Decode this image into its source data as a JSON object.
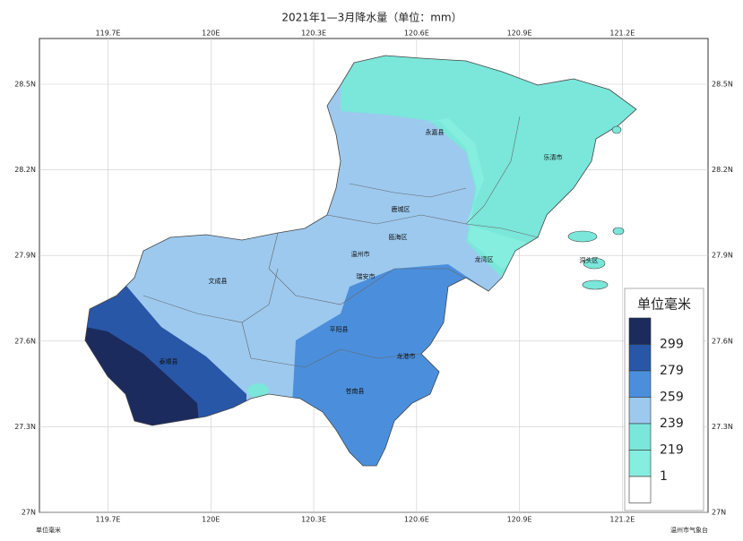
{
  "title": "2021年1—3月降水量（单位：mm）",
  "map": {
    "xlim": [
      119.5,
      121.45
    ],
    "ylim": [
      27,
      28.66
    ],
    "xticks": [
      {
        "value": 119.7,
        "label": "119.7E"
      },
      {
        "value": 120,
        "label": "120E"
      },
      {
        "value": 120.3,
        "label": "120.3E"
      },
      {
        "value": 120.6,
        "label": "120.6E"
      },
      {
        "value": 120.9,
        "label": "120.9E"
      },
      {
        "value": 121.2,
        "label": "121.2E"
      }
    ],
    "yticks": [
      {
        "value": 27,
        "label": "27N"
      },
      {
        "value": 27.3,
        "label": "27.3N"
      },
      {
        "value": 27.6,
        "label": "27.6N"
      },
      {
        "value": 27.9,
        "label": "27.9N"
      },
      {
        "value": 28.2,
        "label": "28.2N"
      },
      {
        "value": 28.5,
        "label": "28.5N"
      }
    ],
    "districts": [
      "永嘉县",
      "乐清市",
      "鹿城区",
      "瓯海区",
      "温州市",
      "龙湾区",
      "文成县",
      "瑞安市",
      "平阳县",
      "泰顺县",
      "龙港市",
      "苍南县",
      "洞头区"
    ]
  },
  "legend": {
    "title": "单位毫米",
    "levels": [
      299,
      279,
      259,
      239,
      219,
      1
    ],
    "colors": [
      "#1c2b5e",
      "#2857a8",
      "#4b8fdc",
      "#9dc9ef",
      "#7be6da",
      "#86eedf",
      "#ffffff"
    ]
  },
  "footer": {
    "left": "单位毫米",
    "right": "温州市气象台"
  }
}
